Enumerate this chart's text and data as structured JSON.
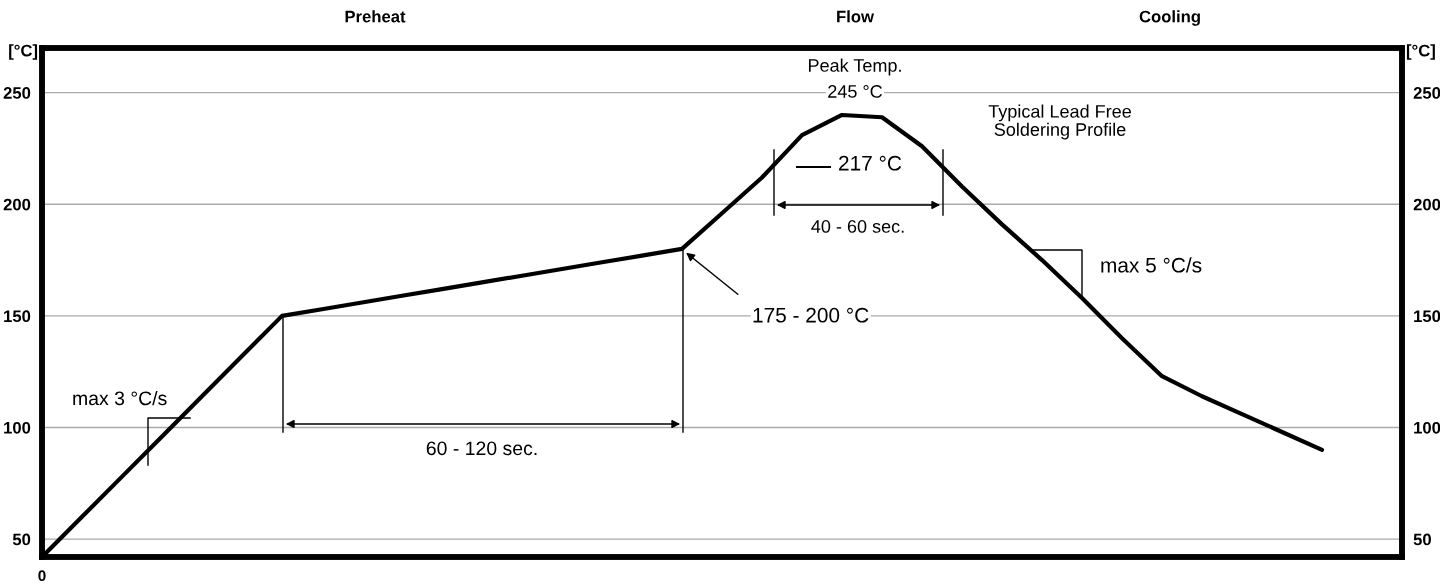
{
  "chart_data": {
    "type": "line",
    "categories": [
      null,
      null,
      null,
      null,
      null,
      null,
      null,
      null,
      null,
      null,
      null,
      null,
      null,
      null,
      null,
      null,
      null,
      null,
      null,
      null,
      null,
      null,
      null,
      null,
      null,
      null,
      null,
      null,
      null,
      null,
      null,
      null,
      null,
      null,
      null
    ],
    "series": [
      {
        "color": "#000000",
        "values": [
          42,
          60,
          78,
          96,
          114,
          132,
          150,
          153,
          156,
          159,
          162,
          165,
          168,
          171,
          174,
          177,
          180,
          196,
          212,
          231,
          240,
          239,
          226,
          208,
          191,
          175,
          158,
          140,
          123,
          114,
          106,
          98,
          90,
          null,
          null
        ]
      }
    ],
    "ylabel": "[°C]",
    "y2label": "[°C]",
    "ylim": [
      42,
      270
    ],
    "yticks": [
      50,
      100,
      150,
      200,
      250
    ],
    "y2lim": [
      42,
      270
    ],
    "y2ticks": [
      50,
      100,
      150,
      200,
      250
    ],
    "grid": "y",
    "marker": "none",
    "line_style": "solid",
    "annotations": [
      "Preheat",
      "Flow",
      "Cooling",
      "Peak Temp.",
      "245 °C",
      "Typical Lead Free\nSoldering Profile",
      "217 °C",
      "40 - 60 sec.",
      "max 5 °C/s",
      "175 - 200 °C",
      "60 - 120 sec.",
      "max 3 °C/s",
      "0"
    ]
  }
}
